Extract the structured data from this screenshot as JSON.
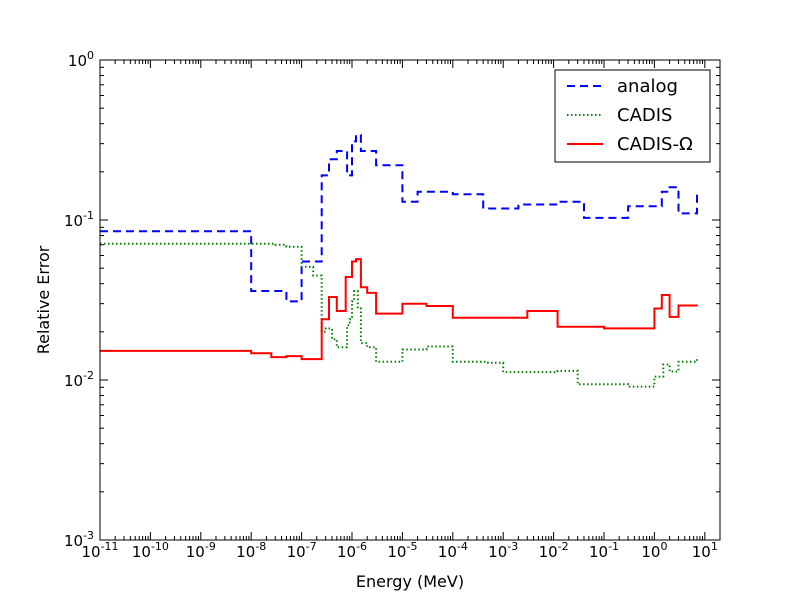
{
  "chart_data": {
    "type": "line",
    "title": "",
    "xlabel": "Energy (MeV)",
    "ylabel": "Relative Error",
    "xscale": "log",
    "yscale": "log",
    "xlim": [
      1e-11,
      20
    ],
    "ylim": [
      0.001,
      1
    ],
    "grid": false,
    "legend_position": "top-right",
    "x_ticks": [
      {
        "value": 1e-11,
        "base": "10",
        "exp": "-11"
      },
      {
        "value": 1e-10,
        "base": "10",
        "exp": "-10"
      },
      {
        "value": 1e-09,
        "base": "10",
        "exp": "-9"
      },
      {
        "value": 1e-08,
        "base": "10",
        "exp": "-8"
      },
      {
        "value": 1e-07,
        "base": "10",
        "exp": "-7"
      },
      {
        "value": 1e-06,
        "base": "10",
        "exp": "-6"
      },
      {
        "value": 1e-05,
        "base": "10",
        "exp": "-5"
      },
      {
        "value": 0.0001,
        "base": "10",
        "exp": "-4"
      },
      {
        "value": 0.001,
        "base": "10",
        "exp": "-3"
      },
      {
        "value": 0.01,
        "base": "10",
        "exp": "-2"
      },
      {
        "value": 0.1,
        "base": "10",
        "exp": "-1"
      },
      {
        "value": 1,
        "base": "10",
        "exp": "0"
      },
      {
        "value": 10,
        "base": "10",
        "exp": "1"
      }
    ],
    "y_ticks": [
      {
        "value": 0.001,
        "base": "10",
        "exp": "-3"
      },
      {
        "value": 0.01,
        "base": "10",
        "exp": "-2"
      },
      {
        "value": 0.1,
        "base": "10",
        "exp": "-1"
      },
      {
        "value": 1,
        "base": "10",
        "exp": "0"
      }
    ],
    "series": [
      {
        "name": "analog",
        "color": "#0000ff",
        "style": "dashed",
        "x": [
          1e-11,
          1e-08,
          3e-08,
          5e-08,
          1e-07,
          2.5e-07,
          3.5e-07,
          5e-07,
          8e-07,
          1e-06,
          1.2e-06,
          1.5e-06,
          3e-06,
          1e-05,
          2e-05,
          0.0001,
          0.0004,
          0.001,
          0.002,
          0.003,
          0.012,
          0.04,
          0.1,
          0.3,
          1,
          1.4,
          2,
          3,
          7
        ],
        "y": [
          0.085,
          0.036,
          0.036,
          0.031,
          0.055,
          0.19,
          0.24,
          0.27,
          0.19,
          0.31,
          0.34,
          0.27,
          0.22,
          0.13,
          0.15,
          0.145,
          0.118,
          0.118,
          0.125,
          0.125,
          0.13,
          0.103,
          0.103,
          0.122,
          0.122,
          0.15,
          0.16,
          0.11,
          0.15
        ],
        "x_end": 7
      },
      {
        "name": "CADIS",
        "color": "#008000",
        "style": "dotted",
        "x": [
          1e-11,
          1e-08,
          3e-08,
          5e-08,
          1e-07,
          1.7e-07,
          2.5e-07,
          3e-07,
          4e-07,
          5e-07,
          8e-07,
          9e-07,
          1e-06,
          1.1e-06,
          1.3e-06,
          1.5e-06,
          2e-06,
          3e-06,
          1e-05,
          3e-05,
          0.0001,
          0.0005,
          0.001,
          0.003,
          0.012,
          0.03,
          0.1,
          0.3,
          1,
          1.5,
          2,
          3,
          7
        ],
        "y": [
          0.071,
          0.071,
          0.07,
          0.068,
          0.051,
          0.045,
          0.02,
          0.021,
          0.018,
          0.016,
          0.022,
          0.024,
          0.031,
          0.036,
          0.028,
          0.017,
          0.016,
          0.013,
          0.0155,
          0.0162,
          0.013,
          0.0128,
          0.0112,
          0.0112,
          0.0114,
          0.0094,
          0.0094,
          0.0091,
          0.0105,
          0.0125,
          0.0113,
          0.013,
          0.014
        ],
        "x_end": 7
      },
      {
        "name": "CADIS-Ω",
        "color": "#ff0000",
        "style": "solid",
        "x": [
          1e-11,
          1e-08,
          2.5e-08,
          5e-08,
          1e-07,
          2.5e-07,
          3.5e-07,
          5e-07,
          7.5e-07,
          1e-06,
          1.2e-06,
          1.5e-06,
          2e-06,
          3e-06,
          1e-05,
          3e-05,
          0.0001,
          0.0003,
          0.001,
          0.003,
          0.012,
          0.03,
          0.1,
          0.3,
          1,
          1.4,
          2,
          3,
          7
        ],
        "y": [
          0.0152,
          0.0147,
          0.0139,
          0.0141,
          0.0135,
          0.024,
          0.033,
          0.027,
          0.044,
          0.055,
          0.057,
          0.038,
          0.035,
          0.026,
          0.03,
          0.029,
          0.0245,
          0.0245,
          0.0245,
          0.027,
          0.0215,
          0.0215,
          0.021,
          0.021,
          0.028,
          0.034,
          0.0248,
          0.0292,
          0.029
        ],
        "x_end": 7
      }
    ]
  }
}
